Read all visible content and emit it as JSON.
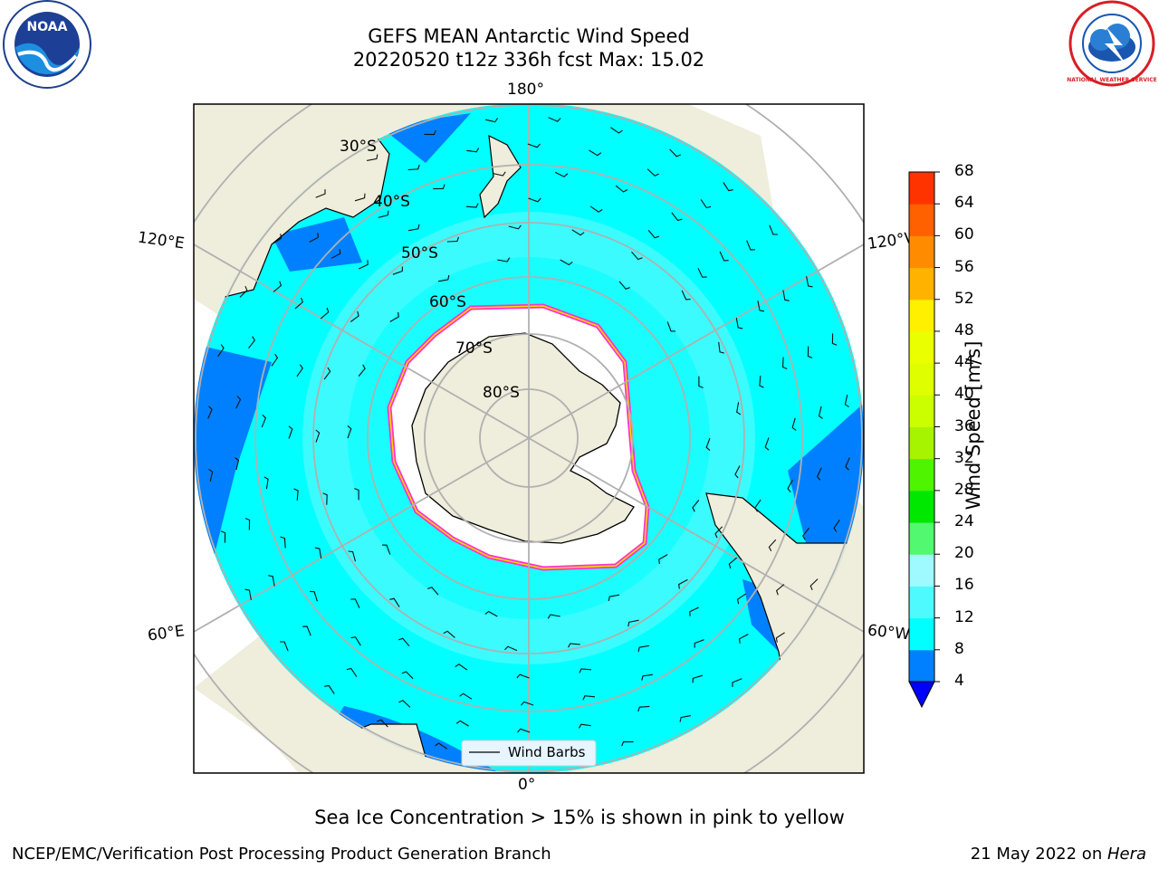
{
  "title": {
    "line1": "GEFS MEAN Antarctic Wind Speed",
    "line2": "20220520 t12z 336h fcst   Max: 15.02"
  },
  "logos": {
    "left": {
      "icon": "noaa-logo",
      "text": "NOAA"
    },
    "right": {
      "icon": "nws-logo",
      "text": "NATIONAL WEATHER SERVICE"
    }
  },
  "map": {
    "projection": "south-polar-stereographic",
    "longitude_labels": {
      "top": "180°",
      "upper_left": "120°E",
      "upper_right": "120°W",
      "lower_left": "60°E",
      "lower_right": "60°W",
      "bottom": "0°"
    },
    "latitude_labels": [
      "30°S",
      "40°S",
      "50°S",
      "60°S",
      "70°S",
      "80°S"
    ],
    "legend": {
      "label": "Wind Barbs"
    },
    "colors": {
      "land": "#efeddb",
      "ice_sheet": "#ffffff",
      "ocean_base": "#00ffff",
      "ocean_light": "#4ffaff",
      "ocean_mid": "#0080ff",
      "grid": "#b0b0b0",
      "sea_ice_edge": "#ff33cc"
    }
  },
  "colorbar": {
    "label": "Wind Speed [m/s]",
    "ticks": [
      "4",
      "8",
      "12",
      "16",
      "20",
      "24",
      "28",
      "32",
      "36",
      "40",
      "44",
      "48",
      "52",
      "56",
      "60",
      "64",
      "68"
    ],
    "colors": [
      "#0080ff",
      "#00ffff",
      "#4ffaff",
      "#9ffaff",
      "#52f970",
      "#00e800",
      "#4ef400",
      "#a7f400",
      "#cbff00",
      "#dfff00",
      "#eaff00",
      "#fff000",
      "#ffb300",
      "#ff8c00",
      "#ff6000",
      "#ff3300",
      "#ff0000"
    ],
    "extend_color": "#0000ff"
  },
  "caption": "Sea Ice Concentration > 15% is shown in pink to yellow",
  "footer": {
    "left": "NCEP/EMC/Verification Post Processing Product Generation Branch",
    "right_prefix": "21 May 2022 on ",
    "right_host": "Hera"
  }
}
